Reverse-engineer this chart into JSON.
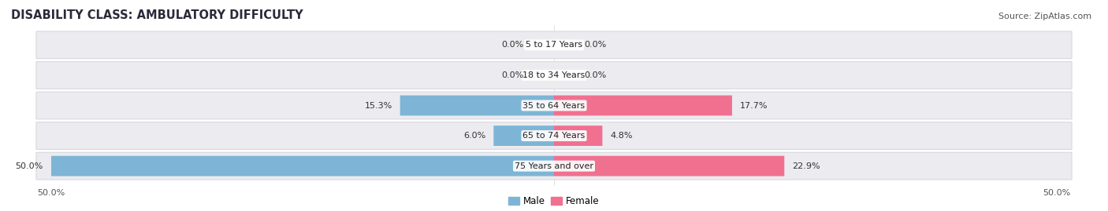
{
  "title": "DISABILITY CLASS: AMBULATORY DIFFICULTY",
  "source": "Source: ZipAtlas.com",
  "categories": [
    "5 to 17 Years",
    "18 to 34 Years",
    "35 to 64 Years",
    "65 to 74 Years",
    "75 Years and over"
  ],
  "male_values": [
    0.0,
    0.0,
    15.3,
    6.0,
    50.0
  ],
  "female_values": [
    0.0,
    0.0,
    17.7,
    4.8,
    22.9
  ],
  "male_color": "#7eb5d6",
  "female_color": "#f07090",
  "max_value": 50.0,
  "title_fontsize": 10.5,
  "source_fontsize": 8,
  "label_fontsize": 8,
  "tick_fontsize": 8,
  "background_color": "#ffffff",
  "row_bg_color": "#ebebf0",
  "row_edge_color": "#d8d8e0"
}
